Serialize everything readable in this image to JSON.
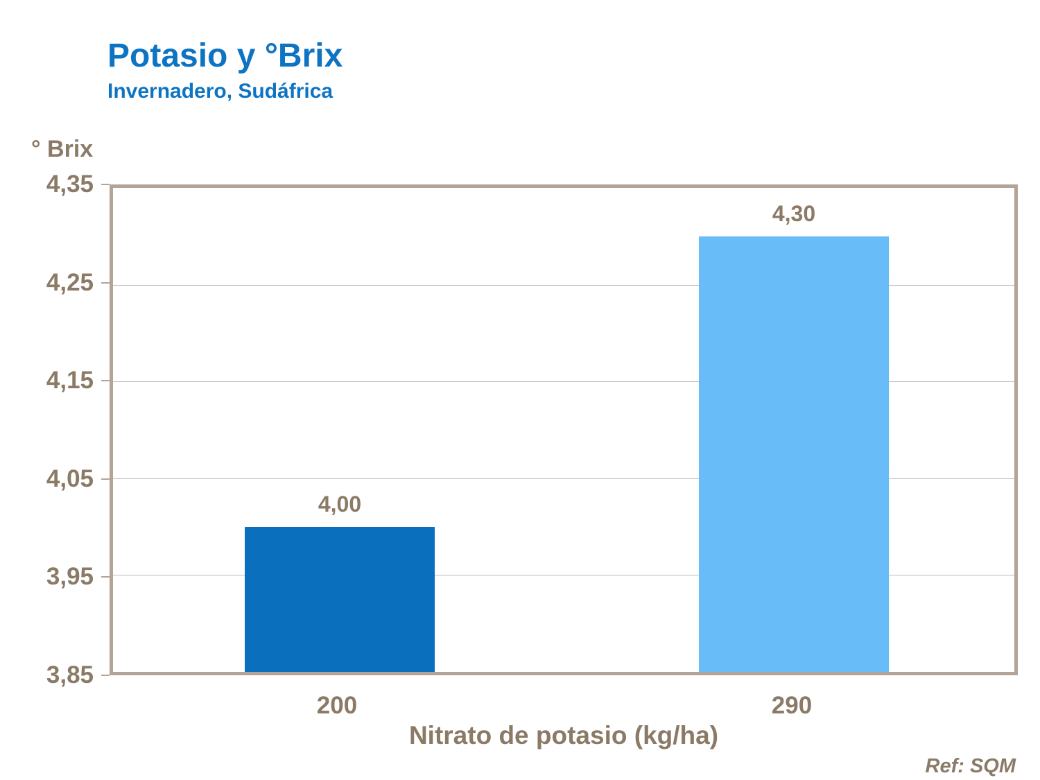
{
  "header": {
    "title": "Potasio y °Brix",
    "subtitle": "Invernadero, Sudáfrica",
    "title_color": "#0d74c4"
  },
  "chart_data": {
    "type": "bar",
    "title": "Potasio y °Brix",
    "subtitle": "Invernadero, Sudáfrica",
    "categories": [
      "200",
      "290"
    ],
    "values": [
      4.0,
      4.3
    ],
    "value_labels": [
      "4,00",
      "4,30"
    ],
    "bar_colors": [
      "#0a70bd",
      "#68bdf9"
    ],
    "xlabel": "Nitrato de potasio (kg/ha)",
    "ylabel": "° Brix",
    "ylim": [
      3.85,
      4.35
    ],
    "ytick_step": 0.1,
    "yticks": [
      "4,35",
      "4,25",
      "4,15",
      "4,05",
      "3,95",
      "3,85"
    ],
    "grid": true,
    "legend": false
  },
  "footer": {
    "ref": "Ref: SQM"
  },
  "colors": {
    "axis_text": "#8a7a66",
    "plot_border": "#b3a497",
    "gridline": "#c2b9ae",
    "background": "#ffffff"
  }
}
